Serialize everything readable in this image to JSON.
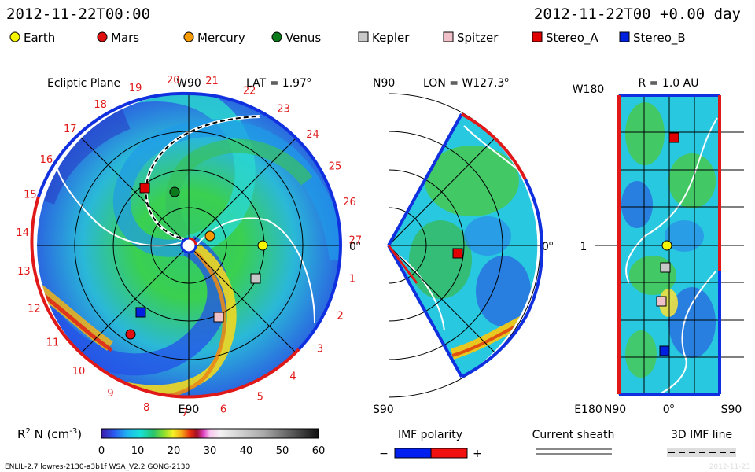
{
  "header": {
    "left_time": "2012-11-22T00:00",
    "right_time": "2012-11-22T00 +0.00 day"
  },
  "legend": [
    {
      "label": "Earth",
      "color": "#f5f500",
      "shape": "circle"
    },
    {
      "label": "Mars",
      "color": "#e01010",
      "shape": "circle"
    },
    {
      "label": "Mercury",
      "color": "#f59a00",
      "shape": "circle"
    },
    {
      "label": "Venus",
      "color": "#0a7a1a",
      "shape": "circle"
    },
    {
      "label": "Kepler",
      "color": "#c8c8c8",
      "shape": "square"
    },
    {
      "label": "Spitzer",
      "color": "#f0c0c8",
      "shape": "square"
    },
    {
      "label": "Stereo_A",
      "color": "#e00000",
      "shape": "square"
    },
    {
      "label": "Stereo_B",
      "color": "#0020e0",
      "shape": "square"
    }
  ],
  "panels": {
    "ecliptic": {
      "title": "Ecliptic Plane",
      "top_label": "W90",
      "bottom_label": "E90",
      "right_label": "0",
      "right_label_sup": "o",
      "lat_label": "LAT = 1.97",
      "lat_sup": "o",
      "carrington_ticks": [
        "1",
        "2",
        "3",
        "4",
        "5",
        "6",
        "7",
        "8",
        "9",
        "10",
        "11",
        "12",
        "13",
        "14",
        "15",
        "16",
        "17",
        "18",
        "19",
        "20",
        "21",
        "22",
        "23",
        "24",
        "25",
        "26",
        "27"
      ]
    },
    "meridional": {
      "top_left": "N90",
      "bottom_left": "S90",
      "lon_label": "LON = W127.3",
      "lon_sup": "o",
      "right_label": "0",
      "right_sup": "o"
    },
    "radial": {
      "title": "R = 1.0 AU",
      "y_top": "W180",
      "y_mid": "1",
      "y_bottom": "E180",
      "x_left": "N90",
      "x_mid": "0",
      "x_mid_sup": "o",
      "x_right": "S90"
    }
  },
  "colorbar": {
    "label": "R",
    "label_sup": "2",
    "label_rest": " N (cm",
    "label_unit_sup": "-3",
    "label_close": ")",
    "ticks": [
      "0",
      "10",
      "20",
      "30",
      "40",
      "50",
      "60"
    ],
    "min": 0,
    "max": 60
  },
  "imf_polarity": {
    "title": "IMF polarity",
    "minus": "−",
    "plus": "+"
  },
  "current_sheath": {
    "title": "Current sheath"
  },
  "imf_line": {
    "title": "3D IMF line"
  },
  "footer": {
    "left": "ENLIL-2.7 lowres-2130-a3b1f WSA_V2.2 GONG-2130",
    "right": "2012-11-23"
  },
  "chart_data": {
    "type": "heatmap",
    "title": "",
    "quantity": "R2 N (cm-3)",
    "value_range": [
      0,
      60
    ],
    "time": "2012-11-22T00:00",
    "offset_days": 0.0,
    "latitude_deg": 1.97,
    "longitude_deg": "W127.3",
    "radius_au": 1.0,
    "objects": [
      {
        "name": "Earth",
        "position": "ecliptic, on 1 AU ring at 0 deg"
      },
      {
        "name": "Mars",
        "position": "ecliptic, lower-left"
      },
      {
        "name": "Mercury",
        "position": "ecliptic, inner"
      },
      {
        "name": "Venus",
        "position": "ecliptic, inner upper-left"
      },
      {
        "name": "Kepler",
        "position": "ecliptic, lower-right"
      },
      {
        "name": "Spitzer",
        "position": "ecliptic, lower-right"
      },
      {
        "name": "Stereo_A",
        "position": "ecliptic, upper-left"
      },
      {
        "name": "Stereo_B",
        "position": "ecliptic, left"
      }
    ]
  }
}
